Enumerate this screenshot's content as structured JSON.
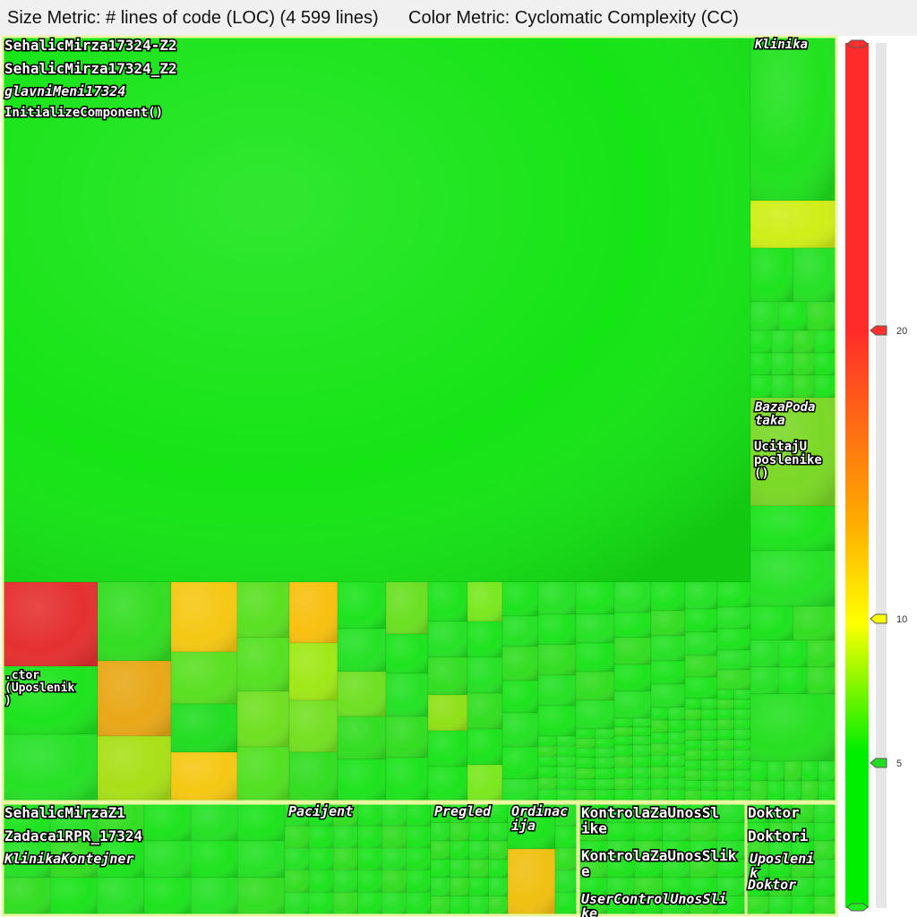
{
  "header": {
    "size_metric": "Size Metric: # lines of code (LOC) (4 599 lines)",
    "color_metric": "Color Metric: Cyclomatic Complexity (CC)"
  },
  "chart_data": {
    "type": "treemap",
    "size_metric": "# lines of code (LOC)",
    "total_lines": 4599,
    "color_metric": "Cyclomatic Complexity (CC)",
    "color_scale": {
      "min_color": "#00ee00",
      "mid_color": "#ffff00",
      "max_color": "#ff2a2a",
      "ticks": [
        5,
        10,
        20
      ]
    },
    "groups": [
      {
        "project": "SehalicMirza17324-Z2",
        "namespace": "SehalicMirza17324_Z2",
        "types": [
          {
            "name": "glavniMeni17324",
            "methods": [
              "InitializeComponent()",
              ".ctor (Uposlenik)"
            ]
          },
          {
            "name": "Klinika",
            "methods": []
          },
          {
            "name": "BazaPodataka",
            "methods": [
              "UcitajUposlenike()"
            ]
          }
        ]
      },
      {
        "project": "SehalicMirzaZ1",
        "namespace": "Zadaca1RPR_17324",
        "types": [
          {
            "name": "KlinikaKontejner",
            "methods": []
          },
          {
            "name": "Pacijent",
            "methods": []
          },
          {
            "name": "Pregled",
            "methods": []
          },
          {
            "name": "Ordinacija",
            "methods": []
          }
        ]
      },
      {
        "project": "KontrolaZaUnosSlike",
        "namespace": "KontrolaZaUnosSlike",
        "types": [
          {
            "name": "UserControlUnosSlike",
            "methods": []
          }
        ]
      },
      {
        "project": "Doktor",
        "namespace": "Doktori",
        "types": [
          {
            "name": "Uposlenik",
            "methods": []
          },
          {
            "name": "Doktor",
            "methods": []
          }
        ]
      }
    ],
    "labels": {
      "g1_project": "SehalicMirza17324-Z2",
      "g1_namespace": "SehalicMirza17324_Z2",
      "g1_type": "glavniMeni17324",
      "g1_method": "InitializeComponent()",
      "klinika": "Klinika",
      "bazapodataka_1": "BazaPodataka",
      "ucitaj": "UcitajUposlenike()",
      "ctor": ".ctor (Uposlenik)",
      "g2_project": "SehalicMirzaZ1",
      "g2_namespace": "Zadaca1RPR_17324",
      "g2_type": "KlinikaKontejner",
      "pacijent": "Pacijent",
      "pregled": "Pregled",
      "ordinacija": "Ordinacija",
      "g3_project": "KontrolaZaUnosSlike",
      "g3_namespace": "KontrolaZaUnosSlike",
      "g3_type": "UserControlUnosSlike",
      "g4_project": "Doktor",
      "g4_namespace": "Doktori",
      "uposlenik": "Uposlenik",
      "doktor": "Doktor"
    }
  }
}
